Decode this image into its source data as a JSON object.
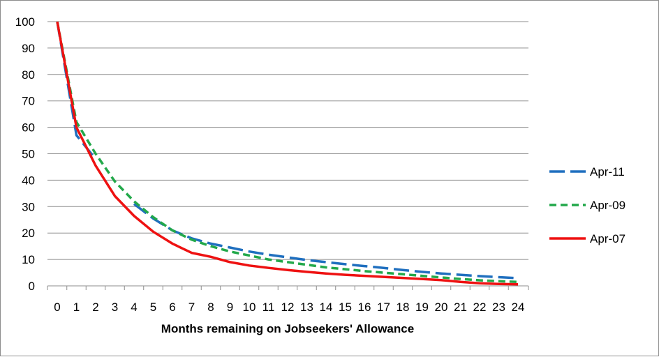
{
  "chart_data": {
    "type": "line",
    "title": "",
    "xlabel": "Months remaining on Jobseekers' Allowance",
    "ylabel": "",
    "x": [
      0,
      1,
      2,
      3,
      4,
      5,
      6,
      7,
      8,
      9,
      10,
      11,
      12,
      13,
      14,
      15,
      16,
      17,
      18,
      19,
      20,
      21,
      22,
      23,
      24
    ],
    "ylim": [
      0,
      100
    ],
    "yticks": [
      0,
      10,
      20,
      30,
      40,
      50,
      60,
      70,
      80,
      90,
      100
    ],
    "grid": "horizontal",
    "legend": "right",
    "series": [
      {
        "name": "Apr-11",
        "color": "#1f6fbf",
        "dash": "long-dash",
        "values": [
          100,
          57,
          48,
          null,
          31,
          25.5,
          21,
          18,
          16,
          14.5,
          13,
          11.8,
          10.8,
          9.8,
          9,
          8.2,
          7.5,
          6.8,
          6,
          5.3,
          4.7,
          4.2,
          3.7,
          3.3,
          2.9
        ]
      },
      {
        "name": "Apr-09",
        "color": "#22a84a",
        "dash": "short-dash",
        "values": [
          100,
          62,
          50,
          39.5,
          32,
          26,
          21,
          17.5,
          15,
          13,
          11.5,
          10,
          9,
          8,
          7,
          6.3,
          5.6,
          5,
          4.4,
          3.8,
          3.2,
          2.6,
          2.1,
          1.8,
          1.5
        ]
      },
      {
        "name": "Apr-07",
        "color": "#ee1111",
        "dash": "solid",
        "values": [
          100,
          60,
          45.5,
          34,
          26.5,
          20.5,
          16,
          12.5,
          11,
          9,
          7.7,
          6.8,
          6,
          5.3,
          4.7,
          4.2,
          3.8,
          3.4,
          3,
          2.6,
          2.2,
          1.5,
          1,
          0.7,
          0.6
        ]
      }
    ]
  }
}
